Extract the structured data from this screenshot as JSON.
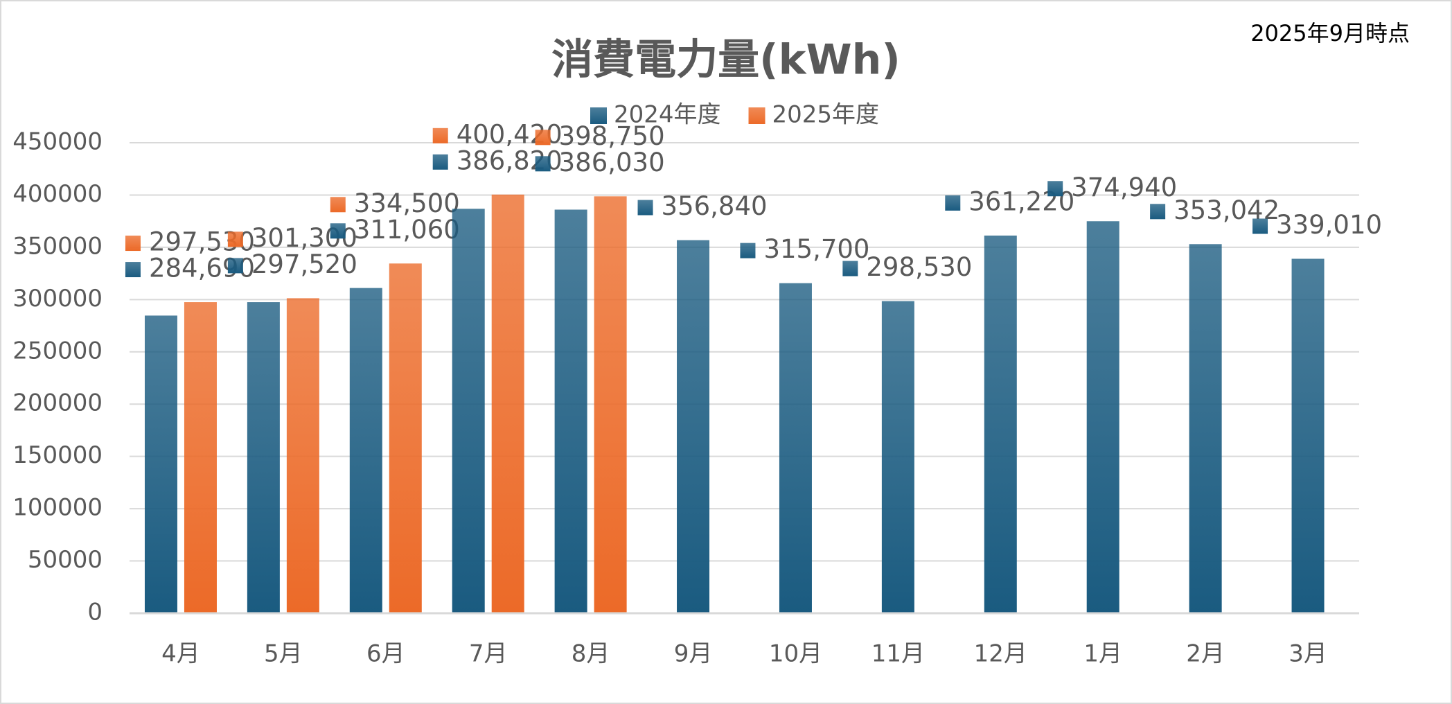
{
  "chart_data": {
    "type": "bar",
    "title": "消費電力量(kWh)",
    "annotation": "2025年9月時点",
    "categories": [
      "4月",
      "5月",
      "6月",
      "7月",
      "8月",
      "9月",
      "10月",
      "11月",
      "12月",
      "1月",
      "2月",
      "3月"
    ],
    "series": [
      {
        "name": "2024年度",
        "color": "#1a5b80",
        "values": [
          284690,
          297520,
          311060,
          386820,
          386030,
          356840,
          315700,
          298530,
          361220,
          374940,
          353042,
          339010
        ],
        "value_labels": [
          "284,690",
          "297,520",
          "311,060",
          "386,820",
          "386,030",
          "356,840",
          "315,700",
          "298,530",
          "361,220",
          "374,940",
          "353,042",
          "339,010"
        ]
      },
      {
        "name": "2025年度",
        "color": "#ec6a28",
        "values": [
          297530,
          301300,
          334500,
          400420,
          398750,
          null,
          null,
          null,
          null,
          null,
          null,
          null
        ],
        "value_labels": [
          "297,530",
          "301,300",
          "334,500",
          "400,420",
          "398,750",
          null,
          null,
          null,
          null,
          null,
          null,
          null
        ]
      }
    ],
    "ylim": [
      0,
      450000
    ],
    "yticks": [
      0,
      50000,
      100000,
      150000,
      200000,
      250000,
      300000,
      350000,
      400000,
      450000
    ],
    "grid": true,
    "legend": "top"
  }
}
